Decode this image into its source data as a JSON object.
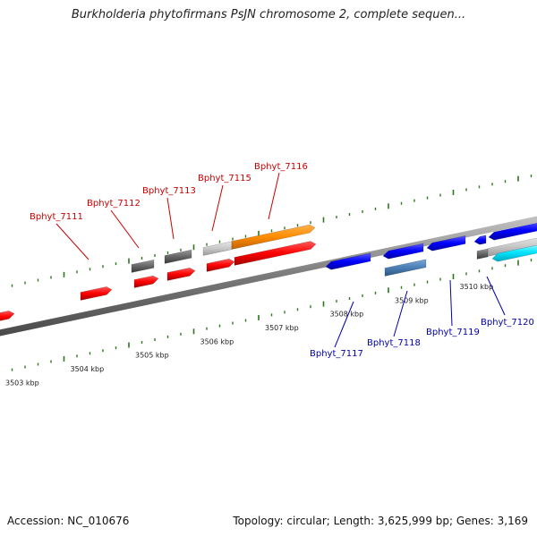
{
  "title": "Burkholderia phytofirmans PsJN chromosome 2, complete sequen...",
  "footer": {
    "accession": "Accession: NC_010676",
    "summary": "Topology: circular; Length: 3,625,999 bp; Genes: 3,169"
  },
  "colors": {
    "forward_gene": "#ff0000",
    "reverse_gene": "#0000ff",
    "other_gene_dark": "#666666",
    "other_gene_light": "#c8c8c8",
    "highlight_orange": "#ff8c00",
    "highlight_steel": "#4a7fb5",
    "highlight_cyan": "#00e5ff",
    "backbone": "#808080",
    "tick": "#2a7a1a",
    "label_red": "#cc0000",
    "label_blue": "#0000aa"
  },
  "ticks": [
    {
      "kbp": 3503,
      "label": "3503 kbp"
    },
    {
      "kbp": 3504,
      "label": "3504 kbp"
    },
    {
      "kbp": 3505,
      "label": "3505 kbp"
    },
    {
      "kbp": 3506,
      "label": "3506 kbp"
    },
    {
      "kbp": 3507,
      "label": "3507 kbp"
    },
    {
      "kbp": 3508,
      "label": "3508 kbp"
    },
    {
      "kbp": 3509,
      "label": "3509 kbp"
    },
    {
      "kbp": 3510,
      "label": "3510 kbp"
    }
  ],
  "gene_labels": [
    {
      "name": "Bphyt_7111",
      "strand": "forward"
    },
    {
      "name": "Bphyt_7112",
      "strand": "forward"
    },
    {
      "name": "Bphyt_7113",
      "strand": "forward"
    },
    {
      "name": "Bphyt_7115",
      "strand": "forward"
    },
    {
      "name": "Bphyt_7116",
      "strand": "forward"
    },
    {
      "name": "Bphyt_7117",
      "strand": "reverse"
    },
    {
      "name": "Bphyt_7118",
      "strand": "reverse"
    },
    {
      "name": "Bphyt_7119",
      "strand": "reverse"
    },
    {
      "name": "Bphyt_7120",
      "strand": "reverse"
    }
  ]
}
